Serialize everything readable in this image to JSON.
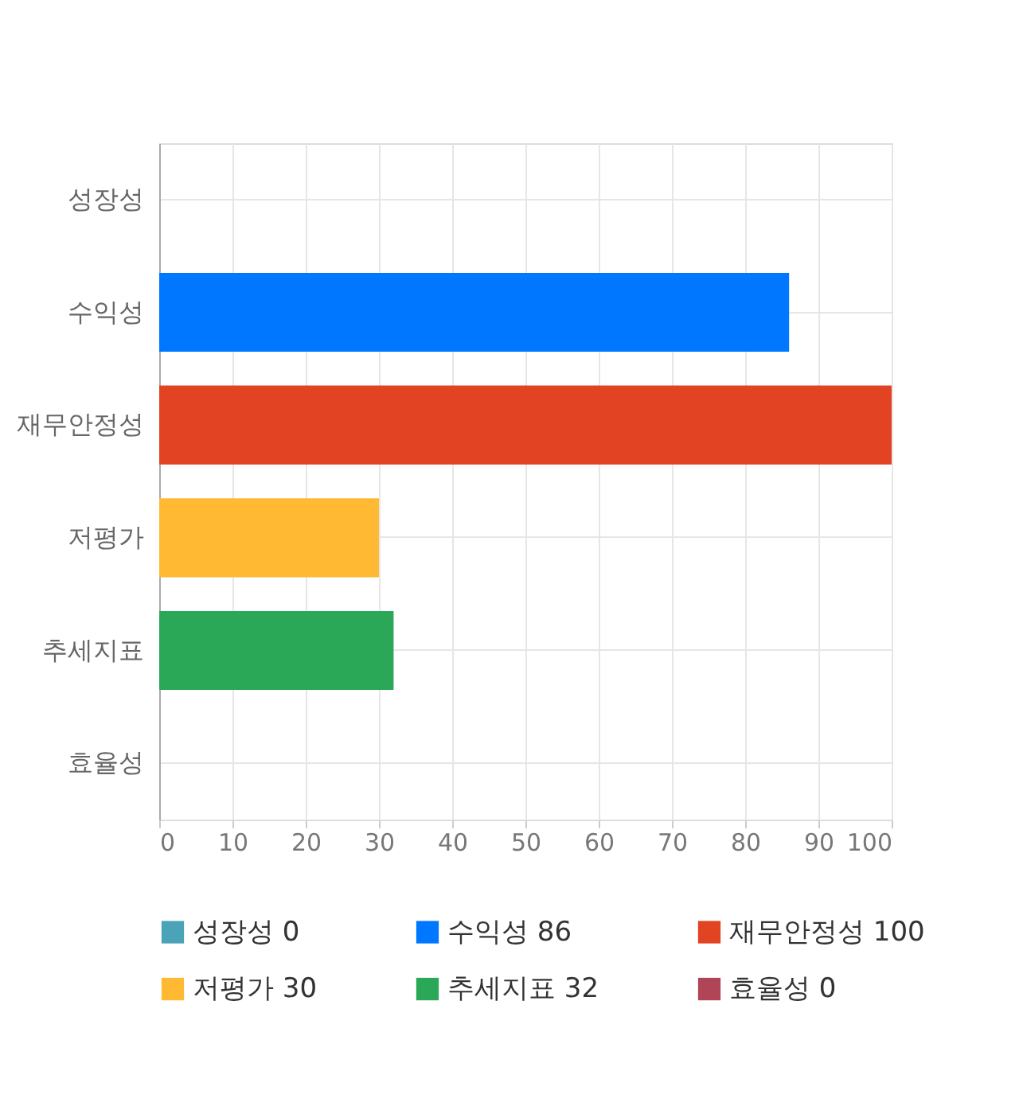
{
  "chart_data": {
    "type": "bar",
    "orientation": "horizontal",
    "categories": [
      "성장성",
      "수익성",
      "재무안정성",
      "저평가",
      "추세지표",
      "효율성"
    ],
    "series": [
      {
        "name": "성장성 0",
        "color": "#4ba3b8",
        "values": [
          0,
          null,
          null,
          null,
          null,
          null
        ]
      },
      {
        "name": "수익성 86",
        "color": "#0077ff",
        "values": [
          null,
          86,
          null,
          null,
          null,
          null
        ]
      },
      {
        "name": "재무안정성 100",
        "color": "#e24322",
        "values": [
          null,
          null,
          100,
          null,
          null,
          null
        ]
      },
      {
        "name": "저평가 30",
        "color": "#ffb933",
        "values": [
          null,
          null,
          null,
          30,
          null,
          null
        ]
      },
      {
        "name": "추세지표 32",
        "color": "#2aa858",
        "values": [
          null,
          null,
          null,
          null,
          32,
          null
        ]
      },
      {
        "name": "효율성 0",
        "color": "#b04558",
        "values": [
          null,
          null,
          null,
          null,
          null,
          0
        ]
      }
    ],
    "xlim": [
      0,
      100
    ],
    "xticks": [
      0,
      10,
      20,
      30,
      40,
      50,
      60,
      70,
      80,
      90,
      100
    ],
    "grid": true,
    "legend": "bottom"
  }
}
